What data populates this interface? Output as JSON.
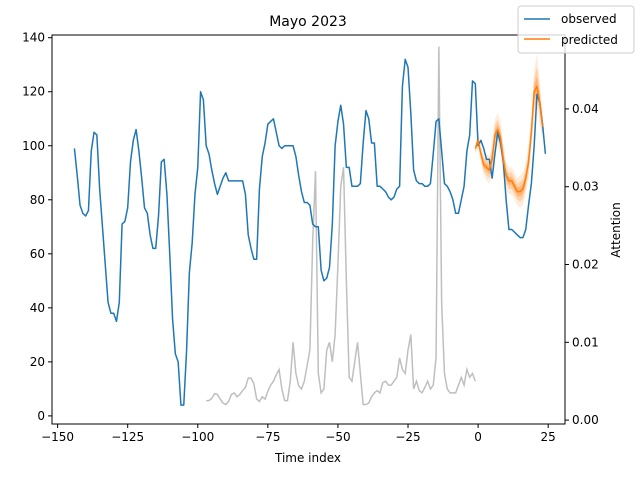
{
  "chart_data": {
    "type": "line",
    "title": "Mayo 2023",
    "xlabel": "Time index",
    "ylabel": "",
    "y2label": "Attention",
    "xlim": [
      -152,
      31
    ],
    "ylim": [
      -3,
      141
    ],
    "y2lim": [
      -0.0005,
      0.0495
    ],
    "xticks": [
      -150,
      -125,
      -100,
      -75,
      -50,
      -25,
      0,
      25
    ],
    "yticks": [
      0,
      20,
      40,
      60,
      80,
      100,
      120,
      140
    ],
    "y2ticks": [
      0.0,
      0.01,
      0.02,
      0.03,
      0.04
    ],
    "y2tick_labels": [
      "0.00",
      "0.01",
      "0.02",
      "0.03",
      "0.04"
    ],
    "legend": {
      "placement": "top-right",
      "entries": [
        "observed",
        "predicted"
      ]
    },
    "colors": {
      "observed": "#1f77b4",
      "predicted": "#ff7f0e",
      "attention": "#bfbfbf",
      "band": "#ff7f0e"
    },
    "series": [
      {
        "name": "observed",
        "axis": "left",
        "x": [
          -144,
          -143,
          -142,
          -141,
          -140,
          -139,
          -138,
          -137,
          -136,
          -135,
          -134,
          -133,
          -132,
          -131,
          -130,
          -129,
          -128,
          -127,
          -126,
          -125,
          -124,
          -123,
          -122,
          -121,
          -120,
          -119,
          -118,
          -117,
          -116,
          -115,
          -114,
          -113,
          -112,
          -111,
          -110,
          -109,
          -108,
          -107,
          -106,
          -105,
          -104,
          -103,
          -102,
          -101,
          -100,
          -99,
          -98,
          -97,
          -96,
          -95,
          -94,
          -93,
          -92,
          -91,
          -90,
          -89,
          -88,
          -87,
          -86,
          -85,
          -84,
          -83,
          -82,
          -81,
          -80,
          -79,
          -78,
          -77,
          -76,
          -75,
          -74,
          -73,
          -72,
          -71,
          -70,
          -69,
          -68,
          -67,
          -66,
          -65,
          -64,
          -63,
          -62,
          -61,
          -60,
          -59,
          -58,
          -57,
          -56,
          -55,
          -54,
          -53,
          -52,
          -51,
          -50,
          -49,
          -48,
          -47,
          -46,
          -45,
          -44,
          -43,
          -42,
          -41,
          -40,
          -39,
          -38,
          -37,
          -36,
          -35,
          -34,
          -33,
          -32,
          -31,
          -30,
          -29,
          -28,
          -27,
          -26,
          -25,
          -24,
          -23,
          -22,
          -21,
          -20,
          -19,
          -18,
          -17,
          -16,
          -15,
          -14,
          -13,
          -12,
          -11,
          -10,
          -9,
          -8,
          -7,
          -6,
          -5,
          -4,
          -3,
          -2,
          -1,
          0,
          1,
          2,
          3,
          4,
          5,
          6,
          7,
          8,
          9,
          10,
          11,
          12,
          13,
          14,
          15,
          16,
          17,
          18,
          19,
          20,
          21,
          22,
          23,
          24
        ],
        "y": [
          99,
          89,
          78,
          75,
          74,
          76,
          98,
          105,
          104,
          84,
          70,
          56,
          42,
          38,
          38,
          35,
          42,
          71,
          72,
          77,
          94,
          102,
          106,
          98,
          88,
          77,
          75,
          67,
          62,
          62,
          74,
          94,
          95,
          82,
          60,
          36,
          23,
          20,
          4,
          4,
          24,
          53,
          64,
          82,
          92,
          120,
          117,
          100,
          97,
          91,
          86,
          82,
          85,
          88,
          90,
          87,
          87,
          87,
          87,
          87,
          87,
          82,
          67,
          62,
          58,
          58,
          84,
          96,
          101,
          108,
          109,
          110,
          105,
          100,
          99,
          100,
          100,
          100,
          100,
          96,
          89,
          83,
          79,
          79,
          78,
          71,
          70,
          70,
          54,
          50,
          51,
          55,
          71,
          100,
          109,
          115,
          108,
          92,
          92,
          85,
          85,
          85,
          86,
          101,
          113,
          110,
          101,
          101,
          85,
          85,
          84,
          83,
          81,
          80,
          81,
          84,
          85,
          122,
          132,
          129,
          112,
          91,
          87,
          86,
          86,
          85,
          85,
          86,
          97,
          109,
          110,
          98,
          86,
          85,
          83,
          80,
          75,
          75,
          80,
          85,
          98,
          104,
          124,
          123,
          100,
          102,
          99,
          95,
          95,
          88,
          97,
          105,
          101,
          94,
          80,
          69,
          69,
          68,
          67,
          66,
          66,
          69,
          78,
          86,
          100,
          119,
          116,
          108,
          97
        ]
      },
      {
        "name": "predicted",
        "axis": "left",
        "x": [
          -1,
          0,
          1,
          2,
          3,
          4,
          5,
          6,
          7,
          8,
          9,
          10,
          11,
          12,
          13,
          14,
          15,
          16,
          17,
          18,
          19,
          20,
          21,
          22,
          23
        ],
        "y": [
          99,
          102,
          97,
          93,
          92,
          91,
          95,
          104,
          106,
          103,
          95,
          89,
          87,
          87,
          85,
          83,
          83,
          84,
          88,
          94,
          105,
          120,
          122,
          116,
          107
        ],
        "band_low": [
          97,
          99,
          94,
          89,
          87,
          86,
          89,
          98,
          100,
          97,
          89,
          84,
          82,
          82,
          80,
          78,
          77,
          78,
          82,
          88,
          99,
          110,
          114,
          109,
          102
        ],
        "band_high": [
          101,
          105,
          100,
          97,
          97,
          96,
          101,
          110,
          112,
          109,
          101,
          94,
          92,
          92,
          90,
          88,
          89,
          90,
          94,
          100,
          111,
          128,
          134,
          124,
          112
        ]
      },
      {
        "name": "attention",
        "axis": "right",
        "x": [
          -97,
          -96,
          -95,
          -94,
          -93,
          -92,
          -91,
          -90,
          -89,
          -88,
          -87,
          -86,
          -85,
          -84,
          -83,
          -82,
          -81,
          -80,
          -79,
          -78,
          -77,
          -76,
          -75,
          -74,
          -73,
          -72,
          -71,
          -70,
          -69,
          -68,
          -67,
          -66,
          -65,
          -64,
          -63,
          -62,
          -61,
          -60,
          -59,
          -58,
          -57,
          -56,
          -55,
          -54,
          -53,
          -52,
          -51,
          -50,
          -49,
          -48,
          -47,
          -46,
          -45,
          -44,
          -43,
          -42,
          -41,
          -40,
          -39,
          -38,
          -37,
          -36,
          -35,
          -34,
          -33,
          -32,
          -31,
          -30,
          -29,
          -28,
          -27,
          -26,
          -25,
          -24,
          -23,
          -22,
          -21,
          -20,
          -19,
          -18,
          -17,
          -16,
          -15,
          -14,
          -13,
          -12,
          -11,
          -10,
          -9,
          -8,
          -7,
          -6,
          -5,
          -4,
          -3,
          -2,
          -1
        ],
        "y": [
          0.0025,
          0.0025,
          0.0028,
          0.0034,
          0.0033,
          0.0027,
          0.0022,
          0.002,
          0.0024,
          0.0033,
          0.0035,
          0.003,
          0.0033,
          0.0038,
          0.0042,
          0.0054,
          0.0054,
          0.0047,
          0.0027,
          0.0024,
          0.003,
          0.0027,
          0.0037,
          0.0045,
          0.005,
          0.0058,
          0.0065,
          0.004,
          0.0025,
          0.0025,
          0.005,
          0.01,
          0.006,
          0.0044,
          0.004,
          0.005,
          0.007,
          0.009,
          0.023,
          0.032,
          0.006,
          0.0035,
          0.004,
          0.009,
          0.01,
          0.0075,
          0.011,
          0.02,
          0.03,
          0.0325,
          0.018,
          0.0055,
          0.005,
          0.0075,
          0.01,
          0.006,
          0.002,
          0.002,
          0.0022,
          0.003,
          0.0035,
          0.0038,
          0.0035,
          0.0048,
          0.005,
          0.0045,
          0.0045,
          0.005,
          0.0055,
          0.008,
          0.0065,
          0.006,
          0.009,
          0.011,
          0.004,
          0.005,
          0.0038,
          0.0035,
          0.0042,
          0.005,
          0.004,
          0.0045,
          0.008,
          0.048,
          0.015,
          0.006,
          0.004,
          0.0035,
          0.0035,
          0.0035,
          0.0045,
          0.0055,
          0.0045,
          0.0065,
          0.0055,
          0.006,
          0.005
        ]
      }
    ]
  }
}
